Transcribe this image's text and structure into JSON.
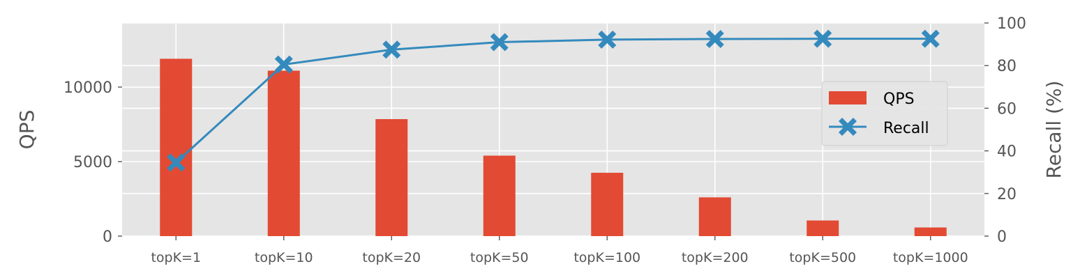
{
  "chart_data": {
    "type": "bar+line",
    "categories": [
      "topK=1",
      "topK=10",
      "topK=20",
      "topK=50",
      "topK=100",
      "topK=200",
      "topK=500",
      "topK=1000"
    ],
    "series": [
      {
        "name": "QPS",
        "type": "bar",
        "axis": "left",
        "values": [
          11900,
          11100,
          7850,
          5400,
          4250,
          2600,
          1050,
          580
        ]
      },
      {
        "name": "Recall",
        "type": "line",
        "axis": "right",
        "marker": "X",
        "values": [
          34.5,
          80.5,
          87.5,
          91.0,
          92.2,
          92.5,
          92.6,
          92.6
        ]
      }
    ],
    "ylabel": "QPS",
    "y2label": "Recall (%)",
    "ylim": [
      0,
      14300
    ],
    "y2lim": [
      0,
      100
    ],
    "yticks": [
      "0",
      "5000",
      "10000"
    ],
    "y2ticks": [
      "0",
      "20",
      "40",
      "60",
      "80",
      "100"
    ],
    "grid": true,
    "legend_position": "center-right",
    "colors": {
      "QPS": "#E24A33",
      "Recall": "#348ABD",
      "background": "#E5E5E5",
      "grid": "#FFFFFF"
    }
  }
}
